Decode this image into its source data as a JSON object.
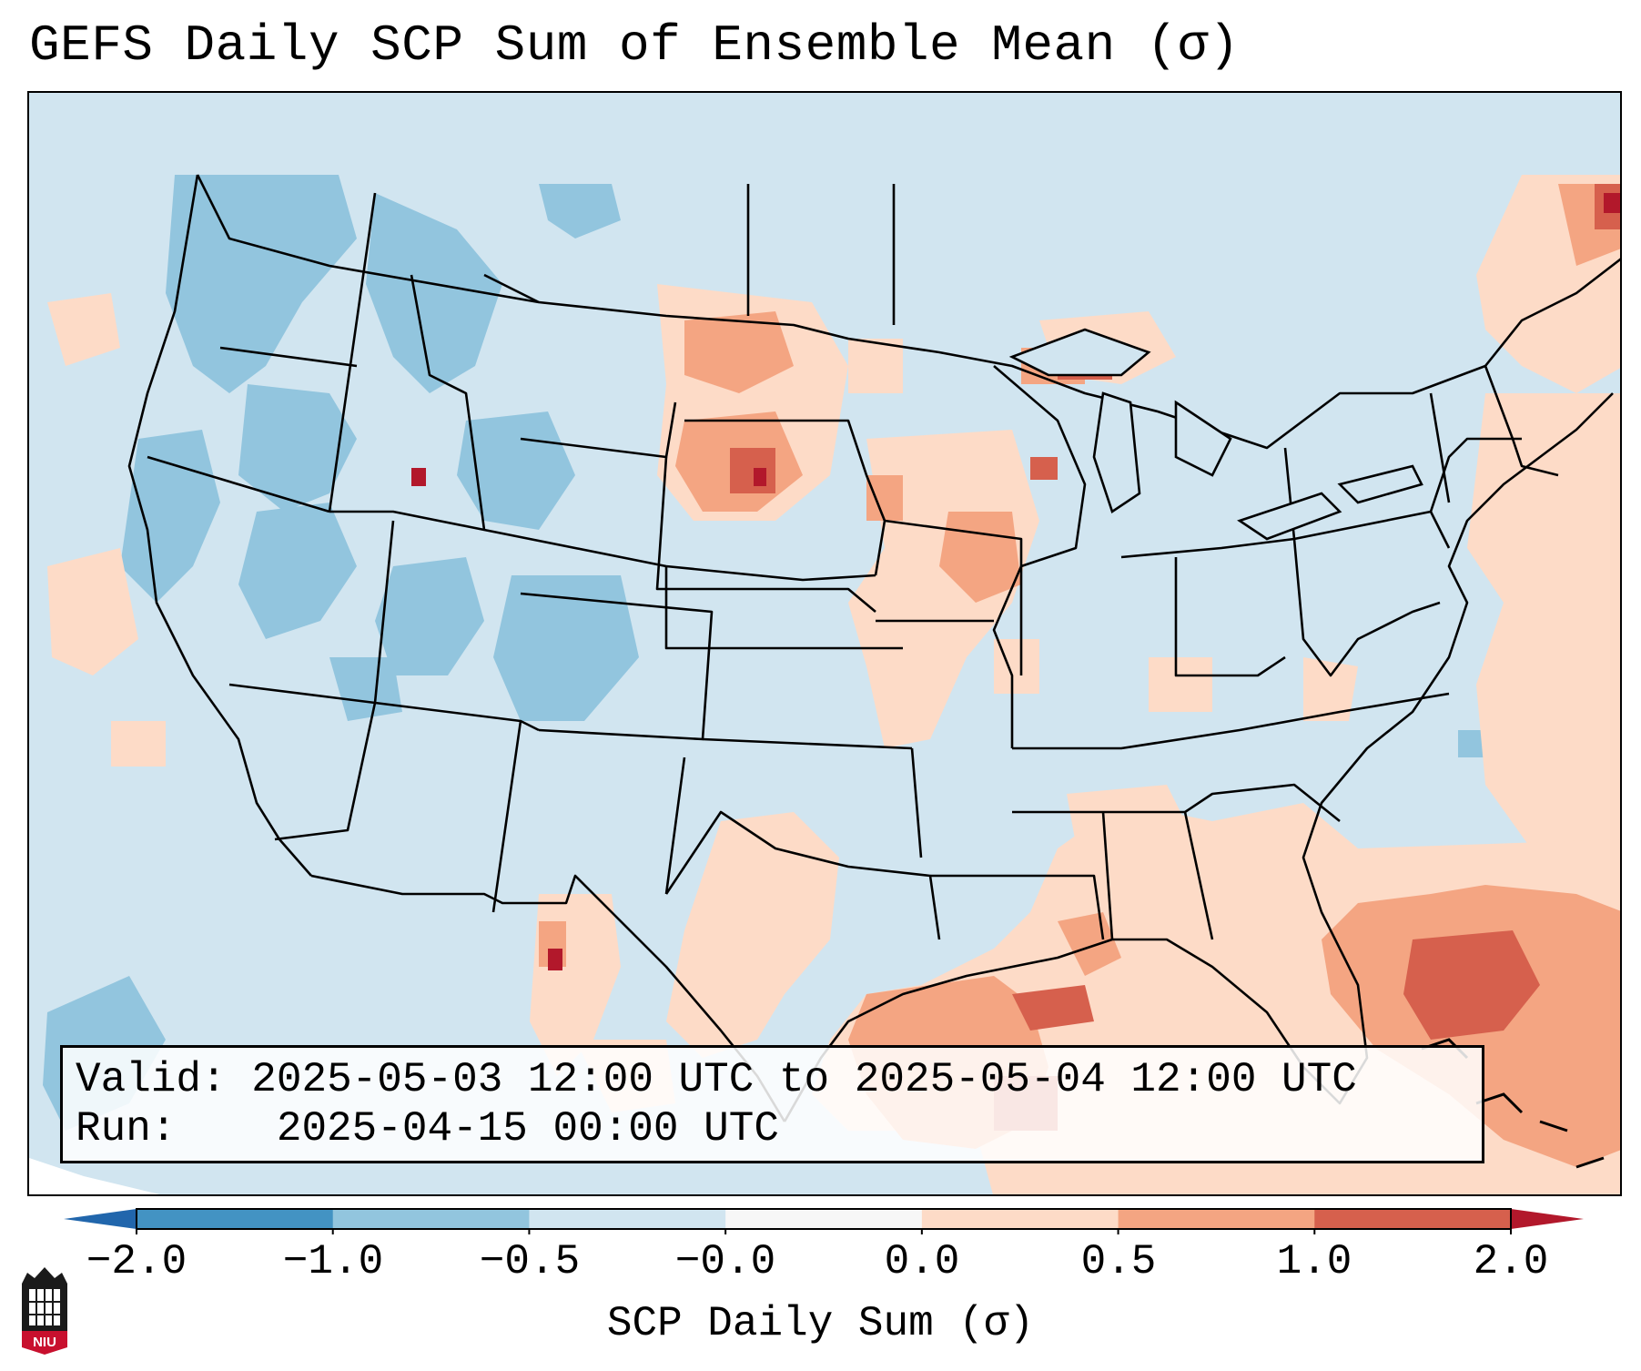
{
  "title": "GEFS Daily SCP Sum of Ensemble Mean (σ)",
  "info": {
    "valid_label": "Valid:",
    "valid_value": "2025-05-03 12:00 UTC to 2025-05-04 12:00 UTC",
    "run_label": "Run:",
    "run_value": "2025-04-15 00:00 UTC"
  },
  "colorbar": {
    "label": "SCP Daily Sum (σ)",
    "ticks": [
      "−2.0",
      "−1.0",
      "−0.5",
      "−0.0",
      "0.0",
      "0.5",
      "1.0",
      "2.0"
    ],
    "colors": [
      "#4393c3",
      "#92c5de",
      "#d1e5f0",
      "#f7f7f7",
      "#fddbc7",
      "#f4a582",
      "#d6604d"
    ],
    "extend_min_color": "#2166ac",
    "extend_max_color": "#b2182b"
  },
  "map": {
    "region": "Contiguous United States",
    "background_color": "#d1e5f0",
    "extension_color": "#92c5de"
  },
  "logo": {
    "text": "NIU",
    "icon": "niu-logo-icon"
  }
}
